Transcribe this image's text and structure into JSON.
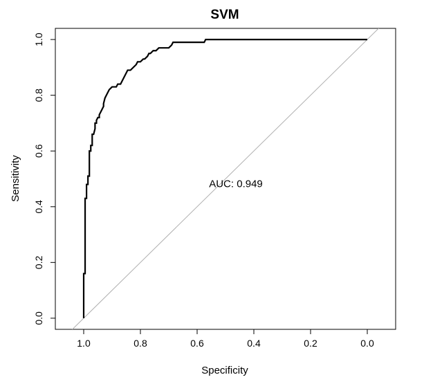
{
  "chart_data": {
    "type": "line",
    "title": "SVM",
    "xlabel": "Specificity",
    "ylabel": "Sensitivity",
    "xlim": [
      1.1,
      -0.1
    ],
    "ylim": [
      -0.04,
      1.04
    ],
    "x_reversed": true,
    "x_ticks": [
      1.0,
      0.8,
      0.6,
      0.4,
      0.2,
      0.0
    ],
    "x_tick_labels": [
      "1.0",
      "0.8",
      "0.6",
      "0.4",
      "0.2",
      "0.0"
    ],
    "y_ticks": [
      0.0,
      0.2,
      0.4,
      0.6,
      0.8,
      1.0
    ],
    "y_tick_labels": [
      "0.0",
      "0.2",
      "0.4",
      "0.6",
      "0.8",
      "1.0"
    ],
    "grid": false,
    "legend": "none",
    "annotation": {
      "text": "AUC: 0.949",
      "x": 0.5,
      "y": 0.47
    },
    "reference_line": {
      "from": [
        1.0,
        0.0
      ],
      "to": [
        0.0,
        1.0
      ],
      "color": "#b0b0b0"
    },
    "series": [
      {
        "color": "#000000",
        "x": [
          1.0,
          1.0,
          0.995,
          0.995,
          0.99,
          0.99,
          0.985,
          0.985,
          0.98,
          0.98,
          0.975,
          0.975,
          0.97,
          0.97,
          0.965,
          0.96,
          0.96,
          0.955,
          0.955,
          0.95,
          0.945,
          0.945,
          0.94,
          0.93,
          0.93,
          0.925,
          0.92,
          0.915,
          0.91,
          0.9,
          0.9,
          0.885,
          0.88,
          0.87,
          0.865,
          0.86,
          0.855,
          0.85,
          0.845,
          0.835,
          0.825,
          0.815,
          0.81,
          0.8,
          0.79,
          0.785,
          0.775,
          0.77,
          0.765,
          0.755,
          0.745,
          0.735,
          0.73,
          0.715,
          0.7,
          0.69,
          0.685,
          0.675,
          0.66,
          0.64,
          0.62,
          0.6,
          0.575,
          0.57,
          0.55,
          0.5,
          0.4,
          0.3,
          0.2,
          0.1,
          0.0
        ],
        "y": [
          0.0,
          0.16,
          0.16,
          0.43,
          0.43,
          0.48,
          0.48,
          0.51,
          0.51,
          0.6,
          0.6,
          0.62,
          0.62,
          0.66,
          0.66,
          0.68,
          0.7,
          0.7,
          0.71,
          0.72,
          0.72,
          0.73,
          0.74,
          0.76,
          0.77,
          0.79,
          0.8,
          0.81,
          0.82,
          0.83,
          0.83,
          0.83,
          0.84,
          0.84,
          0.85,
          0.86,
          0.87,
          0.88,
          0.89,
          0.89,
          0.9,
          0.91,
          0.92,
          0.92,
          0.93,
          0.93,
          0.94,
          0.95,
          0.95,
          0.96,
          0.96,
          0.97,
          0.97,
          0.97,
          0.97,
          0.98,
          0.99,
          0.99,
          0.99,
          0.99,
          0.99,
          0.99,
          0.99,
          1.0,
          1.0,
          1.0,
          1.0,
          1.0,
          1.0,
          1.0,
          1.0
        ]
      }
    ]
  }
}
